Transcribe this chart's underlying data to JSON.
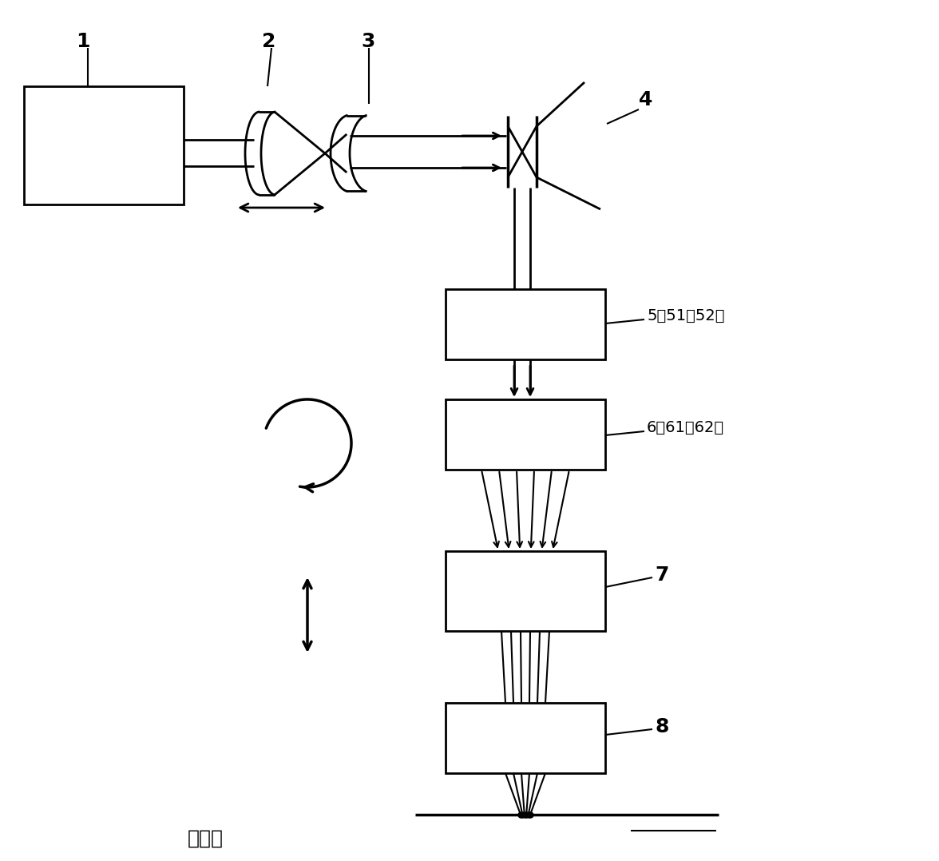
{
  "bg_color": "#ffffff",
  "lc": "#000000",
  "figsize": [
    11.76,
    10.78
  ],
  "dpi": 100,
  "label_1": "1",
  "label_2": "2",
  "label_3": "3",
  "label_4": "4",
  "label_5": "5（51或52）",
  "label_6": "6（61或62）",
  "label_7": "7",
  "label_8": "8",
  "focal_label": "焦平面"
}
